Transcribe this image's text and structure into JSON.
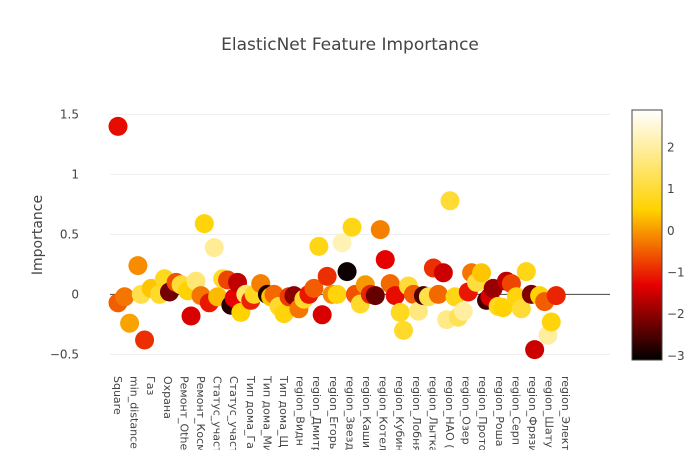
{
  "chart_data": {
    "type": "scatter",
    "title": "ElasticNet Feature Importance",
    "xlabel": "",
    "ylabel": "Importance",
    "ylim": [
      -0.63,
      1.62
    ],
    "y_ticks": [
      -0.5,
      0,
      0.5,
      1,
      1.5
    ],
    "grid": "y",
    "colorbar": {
      "colorscale": "hot",
      "range": [
        -3.1,
        2.9
      ],
      "ticks": [
        -3,
        -2,
        -1,
        0,
        1,
        2
      ],
      "stops": [
        "#000000",
        "#e60000",
        "#ffd200",
        "#ffffff"
      ]
    },
    "x_tick_labels": [
      "Square",
      "min_distance",
      "Газ",
      "Охрана",
      "Ремонт_Othe",
      "Ремонт_Косм",
      "Статус_участ",
      "Статус_участ",
      "Тип дома_Га",
      "Тип дома_Ми",
      "Тип дома_Щ",
      "region_Видн",
      "region_Дмитр",
      "region_Егорь",
      "region_Звезд",
      "region_Каши",
      "region_Котел",
      "region_Кубин",
      "region_Лобня",
      "region_Лытка",
      "region_НАО (",
      "region_Озер",
      "region_Прото",
      "region_Роша",
      "region_Серп",
      "region_Фрязи",
      "region_Шату",
      "region_Элект"
    ],
    "points": [
      {
        "x": 0,
        "y": 1.4,
        "c": -1.2
      },
      {
        "x": 0,
        "y": -0.07,
        "c": -0.5
      },
      {
        "x": 0.4,
        "y": -0.02,
        "c": -0.3
      },
      {
        "x": 0.7,
        "y": -0.24,
        "c": 0.1
      },
      {
        "x": 1.2,
        "y": 0.24,
        "c": -0.1
      },
      {
        "x": 1.4,
        "y": 0.0,
        "c": 1.2
      },
      {
        "x": 1.6,
        "y": -0.38,
        "c": -0.9
      },
      {
        "x": 2.0,
        "y": 0.05,
        "c": 0.4
      },
      {
        "x": 2.5,
        "y": 0.0,
        "c": 0.9
      },
      {
        "x": 2.8,
        "y": 0.13,
        "c": 0.8
      },
      {
        "x": 3.1,
        "y": 0.02,
        "c": -2.2
      },
      {
        "x": 3.5,
        "y": 0.1,
        "c": -0.6
      },
      {
        "x": 3.8,
        "y": 0.08,
        "c": 1.0
      },
      {
        "x": 4.2,
        "y": 0.03,
        "c": 0.5
      },
      {
        "x": 4.4,
        "y": -0.18,
        "c": -1.4
      },
      {
        "x": 4.7,
        "y": 0.11,
        "c": 1.6
      },
      {
        "x": 5.0,
        "y": -0.01,
        "c": -0.3
      },
      {
        "x": 5.2,
        "y": 0.59,
        "c": 0.6
      },
      {
        "x": 5.5,
        "y": -0.07,
        "c": -1.1
      },
      {
        "x": 5.8,
        "y": 0.39,
        "c": 1.9
      },
      {
        "x": 6.0,
        "y": -0.02,
        "c": 0.3
      },
      {
        "x": 6.3,
        "y": 0.13,
        "c": 0.9
      },
      {
        "x": 6.6,
        "y": 0.12,
        "c": -0.7
      },
      {
        "x": 6.8,
        "y": -0.09,
        "c": -2.8
      },
      {
        "x": 7.0,
        "y": -0.03,
        "c": -1.3
      },
      {
        "x": 7.2,
        "y": 0.1,
        "c": -1.6
      },
      {
        "x": 7.4,
        "y": -0.15,
        "c": 0.5
      },
      {
        "x": 7.7,
        "y": 0.0,
        "c": 1.5
      },
      {
        "x": 8.0,
        "y": -0.05,
        "c": -1.0
      },
      {
        "x": 8.2,
        "y": 0.0,
        "c": 0.8
      },
      {
        "x": 8.6,
        "y": 0.09,
        "c": -0.2
      },
      {
        "x": 9.0,
        "y": 0.0,
        "c": -2.9
      },
      {
        "x": 9.2,
        "y": -0.02,
        "c": 0.4
      },
      {
        "x": 9.4,
        "y": 0.0,
        "c": -0.4
      },
      {
        "x": 9.7,
        "y": -0.1,
        "c": 0.9
      },
      {
        "x": 10.0,
        "y": -0.16,
        "c": 0.6
      },
      {
        "x": 10.3,
        "y": -0.02,
        "c": -0.8
      },
      {
        "x": 10.6,
        "y": -0.01,
        "c": -2.0
      },
      {
        "x": 10.9,
        "y": -0.12,
        "c": -0.3
      },
      {
        "x": 11.2,
        "y": -0.04,
        "c": 0.9
      },
      {
        "x": 11.5,
        "y": 0.0,
        "c": -1.1
      },
      {
        "x": 11.8,
        "y": 0.05,
        "c": -0.5
      },
      {
        "x": 12.1,
        "y": 0.4,
        "c": 0.7
      },
      {
        "x": 12.3,
        "y": -0.17,
        "c": -1.4
      },
      {
        "x": 12.6,
        "y": 0.15,
        "c": -0.9
      },
      {
        "x": 12.9,
        "y": 0.0,
        "c": -0.1
      },
      {
        "x": 13.2,
        "y": 0.0,
        "c": 0.6
      },
      {
        "x": 13.5,
        "y": 0.43,
        "c": 2.2
      },
      {
        "x": 13.8,
        "y": 0.19,
        "c": -3.0
      },
      {
        "x": 14.1,
        "y": 0.56,
        "c": 0.7
      },
      {
        "x": 14.3,
        "y": 0.0,
        "c": -0.6
      },
      {
        "x": 14.6,
        "y": -0.08,
        "c": 0.9
      },
      {
        "x": 14.9,
        "y": 0.08,
        "c": 0.0
      },
      {
        "x": 15.2,
        "y": 0.0,
        "c": -1.0
      },
      {
        "x": 15.5,
        "y": -0.01,
        "c": -2.3
      },
      {
        "x": 15.8,
        "y": 0.54,
        "c": -0.2
      },
      {
        "x": 16.1,
        "y": 0.29,
        "c": -1.3
      },
      {
        "x": 16.4,
        "y": 0.09,
        "c": -0.4
      },
      {
        "x": 16.7,
        "y": -0.01,
        "c": -1.2
      },
      {
        "x": 17.0,
        "y": -0.15,
        "c": 0.8
      },
      {
        "x": 17.2,
        "y": -0.3,
        "c": 0.9
      },
      {
        "x": 17.5,
        "y": 0.07,
        "c": 1.0
      },
      {
        "x": 17.8,
        "y": 0.0,
        "c": -0.5
      },
      {
        "x": 18.1,
        "y": -0.14,
        "c": 1.7
      },
      {
        "x": 18.4,
        "y": -0.01,
        "c": -2.5
      },
      {
        "x": 18.7,
        "y": -0.02,
        "c": 1.2
      },
      {
        "x": 19.0,
        "y": 0.22,
        "c": -0.9
      },
      {
        "x": 19.3,
        "y": 0.0,
        "c": -0.4
      },
      {
        "x": 19.6,
        "y": 0.18,
        "c": -1.5
      },
      {
        "x": 19.8,
        "y": -0.21,
        "c": 1.8
      },
      {
        "x": 20.0,
        "y": 0.78,
        "c": 1.0
      },
      {
        "x": 20.3,
        "y": -0.02,
        "c": 0.7
      },
      {
        "x": 20.5,
        "y": -0.19,
        "c": 1.3
      },
      {
        "x": 20.8,
        "y": -0.14,
        "c": 2.0
      },
      {
        "x": 21.1,
        "y": 0.02,
        "c": -1.1
      },
      {
        "x": 21.3,
        "y": 0.18,
        "c": -0.3
      },
      {
        "x": 21.6,
        "y": 0.1,
        "c": 1.1
      },
      {
        "x": 21.9,
        "y": 0.18,
        "c": 0.4
      },
      {
        "x": 22.2,
        "y": -0.05,
        "c": -2.6
      },
      {
        "x": 22.4,
        "y": -0.02,
        "c": -1.4
      },
      {
        "x": 22.6,
        "y": 0.05,
        "c": -1.9
      },
      {
        "x": 22.9,
        "y": -0.1,
        "c": 0.8
      },
      {
        "x": 23.2,
        "y": -0.11,
        "c": 0.5
      },
      {
        "x": 23.4,
        "y": 0.11,
        "c": -1.6
      },
      {
        "x": 23.7,
        "y": 0.09,
        "c": -0.7
      },
      {
        "x": 24.0,
        "y": -0.02,
        "c": 0.6
      },
      {
        "x": 24.3,
        "y": -0.12,
        "c": 1.0
      },
      {
        "x": 24.6,
        "y": 0.19,
        "c": 0.7
      },
      {
        "x": 24.9,
        "y": 0.0,
        "c": -2.1
      },
      {
        "x": 25.1,
        "y": -0.46,
        "c": -1.5
      },
      {
        "x": 25.4,
        "y": -0.01,
        "c": 0.5
      },
      {
        "x": 25.7,
        "y": -0.06,
        "c": -0.5
      },
      {
        "x": 25.9,
        "y": -0.34,
        "c": 2.0
      },
      {
        "x": 26.1,
        "y": -0.23,
        "c": 0.6
      },
      {
        "x": 26.4,
        "y": -0.01,
        "c": -1.0
      }
    ]
  }
}
